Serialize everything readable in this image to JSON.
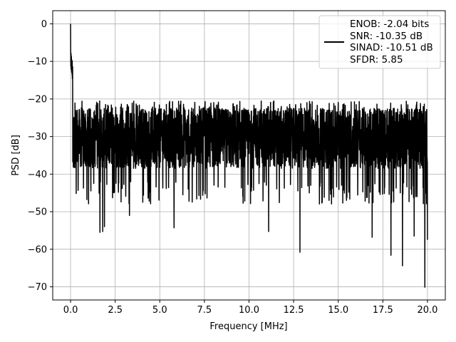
{
  "chart_data": {
    "type": "line",
    "title": "",
    "xlabel": "Frequency [MHz]",
    "ylabel": "PSD [dB]",
    "xlim": [
      -1.0,
      21.0
    ],
    "ylim": [
      -73.5,
      3.5
    ],
    "xticks": [
      0.0,
      2.5,
      5.0,
      7.5,
      10.0,
      12.5,
      15.0,
      17.5,
      20.0
    ],
    "xtick_labels": [
      "0.0",
      "2.5",
      "5.0",
      "7.5",
      "10.0",
      "12.5",
      "15.0",
      "17.5",
      "20.0"
    ],
    "yticks": [
      0,
      -10,
      -20,
      -30,
      -40,
      -50,
      -60,
      -70
    ],
    "ytick_labels": [
      "0",
      "−10",
      "−20",
      "−30",
      "−40",
      "−50",
      "−60",
      "−70"
    ],
    "grid": true,
    "legend_position": "top-right",
    "color": "#000000",
    "series": [
      {
        "legend_lines": [
          "ENOB: -2.04 bits",
          "SNR: -10.35 dB",
          "SINAD: -10.51 dB",
          "SFDR: 5.85"
        ],
        "x_range": [
          0.0,
          20.0
        ],
        "peak": {
          "x": 0.0,
          "y": 0.0
        },
        "notable_minima": [
          {
            "x": 1.65,
            "y": -55.5
          },
          {
            "x": 1.8,
            "y": -55.3
          },
          {
            "x": 1.9,
            "y": -54.0
          },
          {
            "x": 3.3,
            "y": -51.0
          },
          {
            "x": 5.8,
            "y": -54.3
          },
          {
            "x": 11.1,
            "y": -55.3
          },
          {
            "x": 12.85,
            "y": -60.8
          },
          {
            "x": 16.9,
            "y": -56.8
          },
          {
            "x": 17.95,
            "y": -61.6
          },
          {
            "x": 18.6,
            "y": -64.4
          },
          {
            "x": 19.25,
            "y": -56.5
          },
          {
            "x": 19.85,
            "y": -70.1
          },
          {
            "x": 20.0,
            "y": -57.5
          }
        ],
        "noise_ceiling": -20.5,
        "noise_median": -30.5
      }
    ]
  }
}
